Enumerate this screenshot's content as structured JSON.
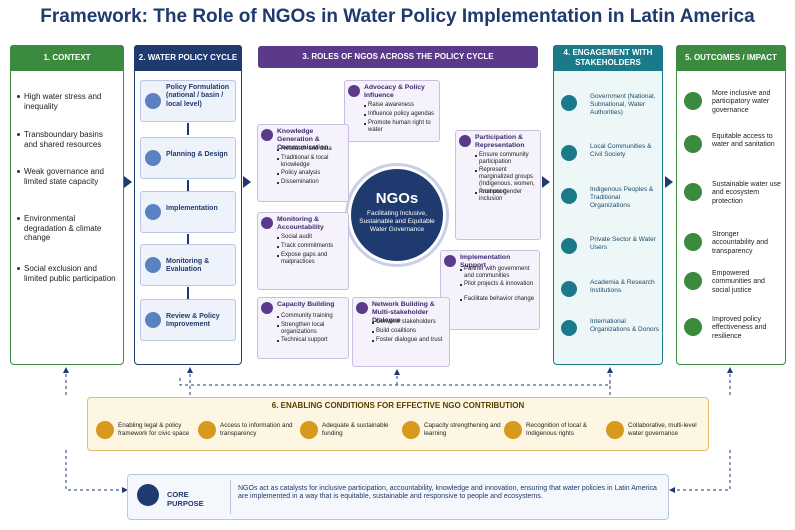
{
  "title": "Framework: The Role of NGOs in Water Policy Implementation in Latin America",
  "context": {
    "heading": "1. CONTEXT",
    "items": [
      "High water stress and inequality",
      "Transboundary basins and shared resources",
      "Weak governance and limited state capacity",
      "Environmental degradation & climate change",
      "Social exclusion and limited public participation"
    ]
  },
  "cycle": {
    "heading": "2. WATER POLICY CYCLE",
    "steps": [
      "Policy Formulation (national / basin / local level)",
      "Planning & Design",
      "Implementation",
      "Monitoring & Evaluation",
      "Review & Policy Improvement"
    ]
  },
  "roles": {
    "heading": "3. ROLES OF NGOS ACROSS THE POLICY CYCLE",
    "center": {
      "title": "NGOs",
      "subtitle": "Facilitating Inclusive, Sustainable and Equitable Water Governance"
    },
    "cards": [
      {
        "title": "Advocacy & Policy Influence",
        "items": [
          "Raise awareness",
          "Influence policy agendas",
          "Promote human right to water"
        ]
      },
      {
        "title": "Knowledge Generation & Communication",
        "items": [
          "Research and data",
          "Traditional & local knowledge",
          "Policy analysis",
          "Dissemination"
        ]
      },
      {
        "title": "Participation & Representation",
        "items": [
          "Ensure community participation",
          "Represent marginalized groups (Indigenous, women, rural poor)",
          "Promote gender inclusion"
        ]
      },
      {
        "title": "Monitoring & Accountability",
        "items": [
          "Social audit",
          "Track commitments",
          "Expose gaps and malpractices"
        ]
      },
      {
        "title": "Implementation Support",
        "items": [
          "Partner with government and communities",
          "Pilot projects & innovation",
          "Facilitate behavior change"
        ]
      },
      {
        "title": "Capacity Building",
        "items": [
          "Community training",
          "Strengthen local organizations",
          "Technical support"
        ]
      },
      {
        "title": "Network Building & Multi-stakeholder Dialogue",
        "items": [
          "Convene stakeholders",
          "Build coalitions",
          "Foster dialogue and trust"
        ]
      }
    ]
  },
  "engagement": {
    "heading": "4. ENGAGEMENT WITH STAKEHOLDERS",
    "items": [
      "Government (National, Subnational, Water Authorities)",
      "Local Communities & Civil Society",
      "Indigenous Peoples & Traditional Organizations",
      "Private Sector & Water Users",
      "Academia & Research Institutions",
      "International Organizations & Donors"
    ]
  },
  "outcomes": {
    "heading": "5. OUTCOMES / IMPACT",
    "items": [
      "More inclusive and participatory water governance",
      "Equitable access to water and sanitation",
      "Sustainable water use and ecosystem protection",
      "Stronger accountability and transparency",
      "Empowered communities and social justice",
      "Improved policy effectiveness and resilience"
    ]
  },
  "conditions": {
    "heading": "6. ENABLING CONDITIONS FOR EFFECTIVE NGO CONTRIBUTION",
    "items": [
      "Enabling legal & policy framework for civic space",
      "Access to information and transparency",
      "Adequate & sustainable funding",
      "Capacity strengthening and learning",
      "Recognition of local & Indigenous rights",
      "Collaborative, multi-level water governance"
    ]
  },
  "purpose": {
    "label": "CORE PURPOSE",
    "text": "NGOs act as catalysts for inclusive participation, accountability, knowledge and innovation, ensuring that water policies in Latin America are implemented in a way that is equitable, sustainable and responsive to people and ecosystems."
  }
}
